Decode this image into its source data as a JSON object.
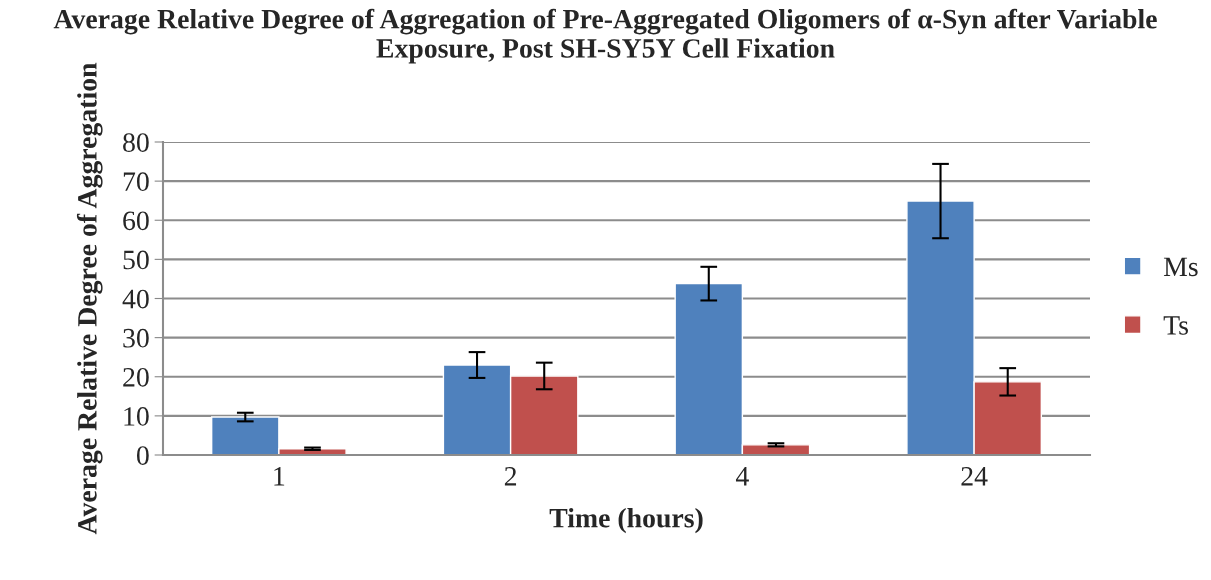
{
  "chart_data": {
    "type": "bar",
    "title": "Average Relative Degree of Aggregation of Pre-Aggregated Oligomers of α-Syn after Variable Exposure, Post SH-SY5Y Cell Fixation",
    "xlabel": "Time (hours)",
    "ylabel": "Average Relative Degree of Aggregation",
    "categories": [
      "1",
      "2",
      "4",
      "24"
    ],
    "series": [
      {
        "name": "Ms",
        "color": "#4f81bd",
        "values": [
          9.7,
          23.0,
          43.8,
          64.9
        ],
        "errors": [
          1.1,
          3.3,
          4.3,
          9.5
        ]
      },
      {
        "name": "Ts",
        "color": "#c0504d",
        "values": [
          1.6,
          20.2,
          2.6,
          18.7
        ],
        "errors": [
          0.3,
          3.4,
          0.4,
          3.5
        ]
      }
    ],
    "ylim": [
      0,
      80
    ],
    "yticks": [
      0,
      10,
      20,
      30,
      40,
      50,
      60,
      70,
      80
    ],
    "grid": "y",
    "legend": "right"
  }
}
